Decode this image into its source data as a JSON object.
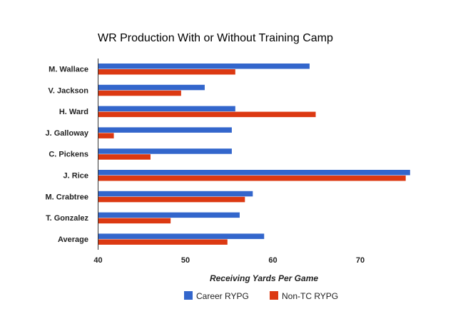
{
  "chart_data": {
    "type": "bar",
    "orientation": "horizontal",
    "title": "WR Production With or Without Training Camp",
    "xlabel": "Receiving Yards Per Game",
    "ylabel": "",
    "xlim": [
      40,
      76
    ],
    "xticks": [
      "40",
      "50",
      "60",
      "70"
    ],
    "grid": false,
    "legend_position": "bottom",
    "categories": [
      "M. Wallace",
      "V. Jackson",
      "H. Ward",
      "J. Galloway",
      "C. Pickens",
      "J. Rice",
      "M. Crabtree",
      "T. Gonzalez",
      "Average"
    ],
    "series": [
      {
        "name": "Career RYPG",
        "color": "#3366cc",
        "values": [
          64.2,
          52.2,
          55.7,
          55.3,
          55.3,
          75.7,
          57.7,
          56.2,
          59.0
        ]
      },
      {
        "name": "Non-TC RYPG",
        "color": "#dc3912",
        "values": [
          55.7,
          49.5,
          64.9,
          41.8,
          46.0,
          75.2,
          56.8,
          48.3,
          54.8
        ]
      }
    ]
  }
}
